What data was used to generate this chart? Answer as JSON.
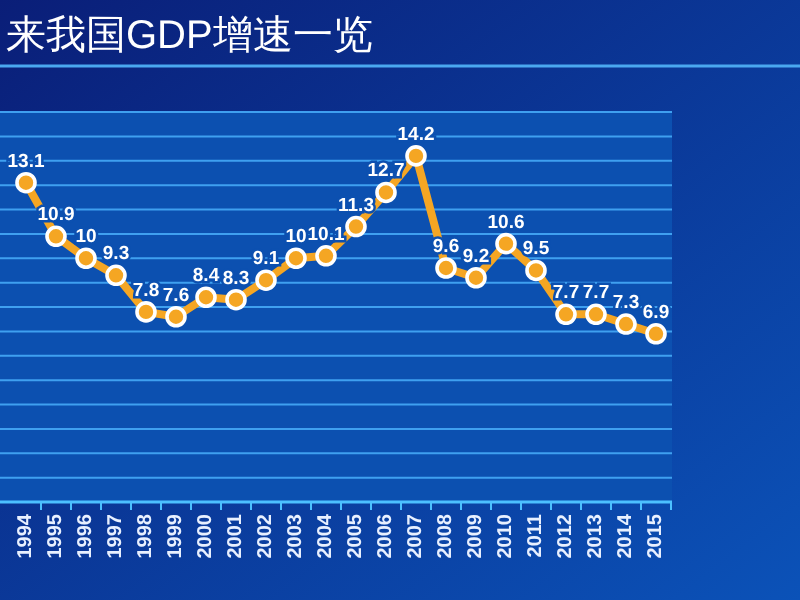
{
  "chart_data": {
    "type": "line",
    "title": "来我国GDP增速一览",
    "categories": [
      "1994",
      "1995",
      "1996",
      "1997",
      "1998",
      "1999",
      "2000",
      "2001",
      "2002",
      "2003",
      "2004",
      "2005",
      "2006",
      "2007",
      "2008",
      "2009",
      "2010",
      "2011",
      "2012",
      "2013",
      "2014",
      "2015"
    ],
    "series": [
      {
        "color": "#f5a623",
        "values": [
          13.1,
          10.9,
          10,
          9.3,
          7.8,
          7.6,
          8.4,
          8.3,
          9.1,
          10,
          10.1,
          11.3,
          12.7,
          14.2,
          9.6,
          9.2,
          10.6,
          9.5,
          7.7,
          7.7,
          7.3,
          6.9
        ]
      }
    ],
    "ylim": [
      0,
      16
    ],
    "yticks": [
      {
        "value": 0,
        "label": null
      },
      {
        "value": 1,
        "label": null
      },
      {
        "value": 2,
        "label": null
      },
      {
        "value": 3,
        "label": null
      },
      {
        "value": 4,
        "label": null
      },
      {
        "value": 5,
        "label": null
      },
      {
        "value": 6,
        "label": null
      },
      {
        "value": 7,
        "label": null
      },
      {
        "value": 8,
        "label": null
      },
      {
        "value": 9,
        "label": null
      },
      {
        "value": 10,
        "label": null
      },
      {
        "value": 11,
        "label": null
      },
      {
        "value": 12,
        "label": null
      },
      {
        "value": 13,
        "label": null
      },
      {
        "value": 14,
        "label": null
      },
      {
        "value": 15,
        "label": null
      },
      {
        "value": 16,
        "label": null
      }
    ],
    "grid": "y",
    "tick_labels": "x",
    "data_labels": true,
    "marker": "circle",
    "line_style": "solid"
  }
}
